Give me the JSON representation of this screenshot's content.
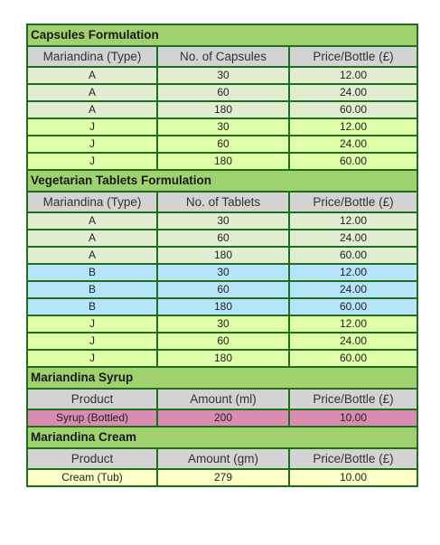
{
  "sections": [
    {
      "title": "Capsules Formulation",
      "headers": [
        "Mariandina (Type)",
        "No. of Capsules",
        "Price/Bottle (£)"
      ],
      "rows": [
        {
          "cells": [
            "A",
            "30",
            "12.00"
          ],
          "style": "A"
        },
        {
          "cells": [
            "A",
            "60",
            "24.00"
          ],
          "style": "A"
        },
        {
          "cells": [
            "A",
            "180",
            "60.00"
          ],
          "style": "A"
        },
        {
          "cells": [
            "J",
            "30",
            "12.00"
          ],
          "style": "J"
        },
        {
          "cells": [
            "J",
            "60",
            "24.00"
          ],
          "style": "J"
        },
        {
          "cells": [
            "J",
            "180",
            "60.00"
          ],
          "style": "J"
        }
      ]
    },
    {
      "title": "Vegetarian Tablets Formulation",
      "headers": [
        "Mariandina (Type)",
        "No. of Tablets",
        "Price/Bottle (£)"
      ],
      "rows": [
        {
          "cells": [
            "A",
            "30",
            "12.00"
          ],
          "style": "A"
        },
        {
          "cells": [
            "A",
            "60",
            "24.00"
          ],
          "style": "A"
        },
        {
          "cells": [
            "A",
            "180",
            "60.00"
          ],
          "style": "A"
        },
        {
          "cells": [
            "B",
            "30",
            "12.00"
          ],
          "style": "B"
        },
        {
          "cells": [
            "B",
            "60",
            "24.00"
          ],
          "style": "B"
        },
        {
          "cells": [
            "B",
            "180",
            "60.00"
          ],
          "style": "B"
        },
        {
          "cells": [
            "J",
            "30",
            "12.00"
          ],
          "style": "J"
        },
        {
          "cells": [
            "J",
            "60",
            "24.00"
          ],
          "style": "J"
        },
        {
          "cells": [
            "J",
            "180",
            "60.00"
          ],
          "style": "J"
        }
      ]
    },
    {
      "title": "Mariandina Syrup",
      "headers": [
        "Product",
        "Amount (ml)",
        "Price/Bottle (£)"
      ],
      "rows": [
        {
          "cells": [
            "Syrup (Bottled)",
            "200",
            "10.00"
          ],
          "style": "syrup"
        }
      ]
    },
    {
      "title": "Mariandina Cream",
      "headers": [
        "Product",
        "Amount (gm)",
        "Price/Bottle (£)"
      ],
      "rows": [
        {
          "cells": [
            "Cream (Tub)",
            "279",
            "10.00"
          ],
          "style": "cream"
        }
      ]
    }
  ],
  "colors": {
    "border": "#1e6e1e",
    "section_header": "#9fd16f",
    "column_header": "#d3d3d3",
    "type_A": "#e2eed2",
    "type_J": "#dfffa8",
    "type_B": "#b5e4fb",
    "syrup": "#da8bb2",
    "cream": "#ffffc8"
  }
}
